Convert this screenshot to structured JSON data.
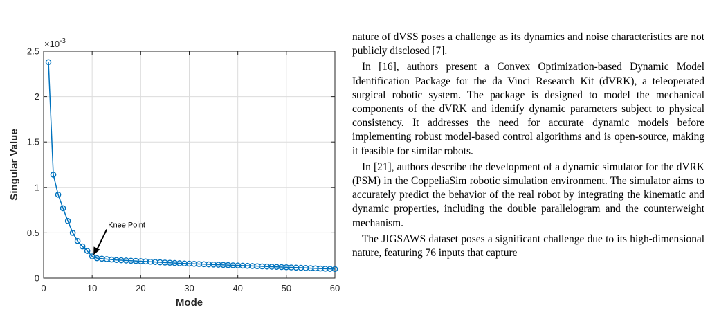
{
  "chart_data": {
    "type": "line",
    "x": [
      1,
      2,
      3,
      4,
      5,
      6,
      7,
      8,
      9,
      10,
      11,
      12,
      13,
      14,
      15,
      16,
      17,
      18,
      19,
      20,
      21,
      22,
      23,
      24,
      25,
      26,
      27,
      28,
      29,
      30,
      31,
      32,
      33,
      34,
      35,
      36,
      37,
      38,
      39,
      40,
      41,
      42,
      43,
      44,
      45,
      46,
      47,
      48,
      49,
      50,
      51,
      52,
      53,
      54,
      55,
      56,
      57,
      58,
      59,
      60
    ],
    "series": [
      {
        "values": [
          2.38,
          1.14,
          0.92,
          0.77,
          0.63,
          0.5,
          0.41,
          0.35,
          0.3,
          0.24,
          0.22,
          0.215,
          0.21,
          0.205,
          0.2,
          0.198,
          0.195,
          0.192,
          0.19,
          0.187,
          0.184,
          0.181,
          0.178,
          0.175,
          0.172,
          0.17,
          0.167,
          0.164,
          0.162,
          0.16,
          0.158,
          0.156,
          0.154,
          0.152,
          0.15,
          0.148,
          0.146,
          0.144,
          0.142,
          0.14,
          0.138,
          0.136,
          0.134,
          0.132,
          0.13,
          0.128,
          0.126,
          0.124,
          0.122,
          0.12,
          0.118,
          0.116,
          0.114,
          0.112,
          0.11,
          0.108,
          0.106,
          0.104,
          0.102,
          0.1
        ]
      }
    ],
    "xlabel": "Mode",
    "ylabel": "Singular Value",
    "y_exponent": "×10",
    "y_exponent_power": "-3",
    "xlim": [
      0,
      60
    ],
    "ylim": [
      0,
      2.5
    ],
    "xticks": [
      0,
      10,
      20,
      30,
      40,
      50,
      60
    ],
    "yticks": [
      0,
      0.5,
      1,
      1.5,
      2,
      2.5
    ],
    "xtick_labels": [
      "0",
      "10",
      "20",
      "30",
      "40",
      "50",
      "60"
    ],
    "ytick_labels": [
      "0",
      "0.5",
      "1",
      "1.5",
      "2",
      "2.5"
    ],
    "grid": true,
    "line_color": "#0072bd",
    "annotation": {
      "text": "Knee Point",
      "x": 10,
      "y": 0.24
    }
  },
  "body_text": {
    "p1": "nature of dVSS poses a challenge as its dynamics and noise characteristics are not publicly disclosed [7].",
    "p2": "In [16], authors present a Convex Optimization-based Dynamic Model Identification Package for the da Vinci Research Kit (dVRK), a teleoperated surgical robotic system. The package is designed to model the mechanical components of the dVRK and identify dynamic parameters subject to physical consistency. It addresses the need for accurate dynamic models before implementing robust model-based control algorithms and is open-source, making it feasible for similar robots.",
    "p3": "In [21], authors describe the development of a dynamic simulator for the dVRK (PSM) in the CoppeliaSim robotic simulation environment. The simulator aims to accurately predict the behavior of the real robot by integrating the kinematic and dynamic properties, including the double parallelogram and the counterweight mechanism.",
    "p4": "The JIGSAWS dataset poses a significant challenge due to its high-dimensional nature, featuring 76 inputs that capture"
  }
}
